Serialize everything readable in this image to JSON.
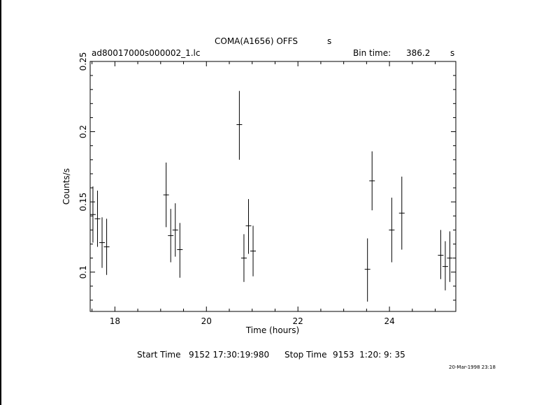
{
  "header": {
    "title": "COMA(A1656) OFFS",
    "title_suffix": "s",
    "file_label": "ad80017000s000002_1.lc",
    "bin_time_label": "Bin time:",
    "bin_time_value": "386.2",
    "bin_time_unit": "s"
  },
  "footer": {
    "start_label": "Start Time",
    "start_value": "9152 17:30:19:980",
    "stop_label": "Stop Time",
    "stop_value": "9153  1:20: 9: 35",
    "timestamp": "20-Mar-1998 23:18"
  },
  "chart_data": {
    "type": "scatter",
    "xlabel": "Time (hours)",
    "ylabel": "Counts/s",
    "xlim": [
      17.46,
      25.45
    ],
    "ylim": [
      0.072,
      0.25
    ],
    "xticks": [
      18,
      20,
      22,
      24
    ],
    "yticks": [
      0.1,
      0.15,
      0.2,
      0.25
    ],
    "grid": false,
    "points": [
      {
        "x": 17.52,
        "y": 0.141,
        "ylo": 0.121,
        "yhi": 0.161
      },
      {
        "x": 17.62,
        "y": 0.138,
        "ylo": 0.118,
        "yhi": 0.158
      },
      {
        "x": 17.72,
        "y": 0.121,
        "ylo": 0.103,
        "yhi": 0.139
      },
      {
        "x": 17.82,
        "y": 0.118,
        "ylo": 0.098,
        "yhi": 0.138
      },
      {
        "x": 19.12,
        "y": 0.155,
        "ylo": 0.132,
        "yhi": 0.178
      },
      {
        "x": 19.22,
        "y": 0.126,
        "ylo": 0.107,
        "yhi": 0.145
      },
      {
        "x": 19.32,
        "y": 0.13,
        "ylo": 0.111,
        "yhi": 0.149
      },
      {
        "x": 19.42,
        "y": 0.116,
        "ylo": 0.096,
        "yhi": 0.135
      },
      {
        "x": 20.72,
        "y": 0.205,
        "ylo": 0.18,
        "yhi": 0.229
      },
      {
        "x": 20.82,
        "y": 0.11,
        "ylo": 0.093,
        "yhi": 0.127
      },
      {
        "x": 20.92,
        "y": 0.133,
        "ylo": 0.113,
        "yhi": 0.152
      },
      {
        "x": 21.02,
        "y": 0.115,
        "ylo": 0.097,
        "yhi": 0.133
      },
      {
        "x": 23.52,
        "y": 0.102,
        "ylo": 0.079,
        "yhi": 0.124
      },
      {
        "x": 23.62,
        "y": 0.165,
        "ylo": 0.144,
        "yhi": 0.186
      },
      {
        "x": 24.05,
        "y": 0.13,
        "ylo": 0.107,
        "yhi": 0.153
      },
      {
        "x": 24.27,
        "y": 0.142,
        "ylo": 0.116,
        "yhi": 0.168
      },
      {
        "x": 25.12,
        "y": 0.112,
        "ylo": 0.095,
        "yhi": 0.13
      },
      {
        "x": 25.22,
        "y": 0.104,
        "ylo": 0.087,
        "yhi": 0.122
      },
      {
        "x": 25.32,
        "y": 0.11,
        "ylo": 0.093,
        "yhi": 0.129
      }
    ]
  }
}
